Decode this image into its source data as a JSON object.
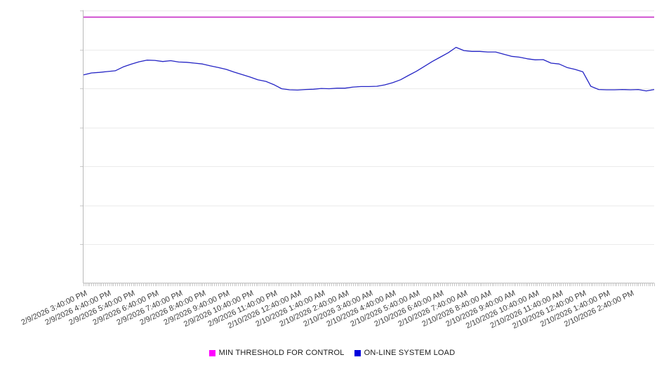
{
  "chart_data": {
    "type": "line",
    "title": "",
    "x_axis": {
      "tick_labels": [
        "2/9/2026 3:40:00 PM",
        "2/9/2026 4:40:00 PM",
        "2/9/2026 5:40:00 PM",
        "2/9/2026 6:40:00 PM",
        "2/9/2026 7:40:00 PM",
        "2/9/2026 8:40:00 PM",
        "2/9/2026 9:40:00 PM",
        "2/9/2026 10:40:00 PM",
        "2/9/2026 11:40:00 PM",
        "2/10/2026 12:40:00 AM",
        "2/10/2026 1:40:00 AM",
        "2/10/2026 2:40:00 AM",
        "2/10/2026 3:40:00 AM",
        "2/10/2026 4:40:00 AM",
        "2/10/2026 5:40:00 AM",
        "2/10/2026 6:40:00 AM",
        "2/10/2026 7:40:00 AM",
        "2/10/2026 8:40:00 AM",
        "2/10/2026 9:40:00 AM",
        "2/10/2026 10:40:00 AM",
        "2/10/2026 11:40:00 AM",
        "2/10/2026 12:40:00 PM",
        "2/10/2026 1:40:00 PM",
        "2/10/2026 2:40:00 PM"
      ],
      "span_hours": 24,
      "minor_ticks_per_hour": 12
    },
    "y_axis": {
      "min": 0,
      "max": 100,
      "labels_visible": false,
      "gridline_divisions": 7
    },
    "legend_position": "bottom-center",
    "grid": true,
    "series": [
      {
        "name": "MIN THRESHOLD FOR CONTROL",
        "type": "constant-line",
        "value": 97.7,
        "color": "#c62ec6"
      },
      {
        "name": "ON-LINE SYSTEM LOAD",
        "type": "line",
        "color": "#2525c5",
        "start_time": "2/9/2026 3:40:00 PM",
        "interval_minutes": 20,
        "values": [
          76.5,
          77.2,
          77.4,
          77.7,
          78.0,
          79.4,
          80.4,
          81.3,
          81.9,
          81.8,
          81.4,
          81.7,
          81.2,
          81.1,
          80.8,
          80.5,
          79.8,
          79.2,
          78.5,
          77.5,
          76.6,
          75.7,
          74.7,
          74.1,
          72.9,
          71.4,
          71.0,
          70.9,
          71.1,
          71.2,
          71.5,
          71.4,
          71.6,
          71.6,
          72.0,
          72.2,
          72.2,
          72.3,
          72.8,
          73.6,
          74.7,
          76.3,
          77.8,
          79.6,
          81.4,
          83.0,
          84.6,
          86.6,
          85.4,
          85.1,
          85.1,
          84.9,
          84.9,
          84.1,
          83.3,
          83.0,
          82.4,
          82.0,
          82.1,
          80.8,
          80.5,
          79.2,
          78.5,
          77.6,
          72.3,
          71.1,
          71.0,
          71.0,
          71.1,
          71.0,
          71.1,
          70.6,
          71.1
        ]
      }
    ]
  },
  "legend": {
    "items": [
      {
        "label": "MIN THRESHOLD FOR CONTROL",
        "swatch_color": "#ff00ff"
      },
      {
        "label": "ON-LINE SYSTEM LOAD",
        "swatch_color": "#0000dd"
      }
    ]
  },
  "colors": {
    "axis": "#b9b9b9",
    "gridline": "#ebebeb",
    "minor_tick": "#c9c9c9",
    "tick_label": "#3f3f3f"
  }
}
